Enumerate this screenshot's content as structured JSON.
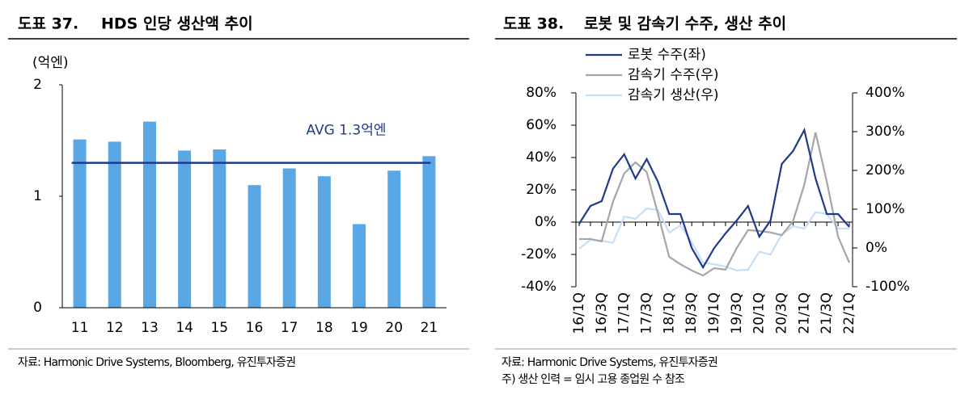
{
  "chart_data": [
    {
      "type": "bar",
      "label": "도표 37.",
      "title": "HDS 인당 생산액 추이",
      "ylabel": "(억엔)",
      "categories": [
        "11",
        "12",
        "13",
        "14",
        "15",
        "16",
        "17",
        "18",
        "19",
        "20",
        "21"
      ],
      "values": [
        1.51,
        1.49,
        1.67,
        1.41,
        1.42,
        1.1,
        1.25,
        1.18,
        0.75,
        1.23,
        1.36
      ],
      "color": "#5aa7e6",
      "ylim": [
        0,
        2
      ],
      "yticks": [
        0,
        1,
        2
      ],
      "avg": 1.3,
      "avg_label": "AVG 1.3억엔",
      "avg_color": "#1f3a8c",
      "source": "자료: Harmonic Drive Systems, Bloomberg, 유진투자증권"
    },
    {
      "type": "line",
      "label": "도표 38.",
      "title": "로봇 및 감속기 수주, 생산 추이",
      "categories": [
        "16/1Q",
        null,
        "16/3Q",
        null,
        "17/1Q",
        null,
        "17/3Q",
        null,
        "18/1Q",
        null,
        "18/3Q",
        null,
        "19/1Q",
        null,
        "19/3Q",
        null,
        "20/1Q",
        null,
        "20/3Q",
        null,
        "21/1Q",
        null,
        "21/3Q",
        null,
        "22/1Q"
      ],
      "series": [
        {
          "name": "로봇 수주(좌)",
          "color": "#1f3a8c",
          "values": [
            -1,
            10,
            13,
            33,
            42,
            27,
            39,
            25,
            5,
            5,
            -16,
            -28,
            -16,
            -7,
            1,
            10,
            -9,
            1,
            36,
            44,
            57,
            27,
            5,
            5,
            -3
          ]
        },
        {
          "name": "감속기 수주(우)",
          "color": "#a6a6a6",
          "axis": "y2",
          "values": [
            23,
            23,
            17,
            119,
            192,
            221,
            196,
            88,
            -23,
            -42,
            -58,
            -71,
            -52,
            -56,
            0,
            46,
            44,
            40,
            33,
            69,
            163,
            298,
            171,
            29,
            -38
          ]
        },
        {
          "name": "감속기 생산(우)",
          "color": "#c5defa",
          "axis": "y2",
          "values": [
            -2,
            21,
            19,
            13,
            81,
            75,
            102,
            98,
            40,
            58,
            15,
            -38,
            -42,
            -48,
            -58,
            -56,
            -10,
            -17,
            35,
            56,
            50,
            92,
            88,
            50,
            50
          ]
        }
      ],
      "ylim": [
        -40,
        80
      ],
      "yticks": [
        {
          "value": -40,
          "label": "-40%"
        },
        {
          "value": -20,
          "label": "-20%"
        },
        {
          "value": 0,
          "label": "0%"
        },
        {
          "value": 20,
          "label": "20%"
        },
        {
          "value": 40,
          "label": "40%"
        },
        {
          "value": 60,
          "label": "60%"
        },
        {
          "value": 80,
          "label": "80%"
        }
      ],
      "y2lim": [
        -100,
        400
      ],
      "y2ticks": [
        {
          "value": -100,
          "label": "-100%"
        },
        {
          "value": 0,
          "label": "0%"
        },
        {
          "value": 100,
          "label": "100%"
        },
        {
          "value": 200,
          "label": "200%"
        },
        {
          "value": 300,
          "label": "300%"
        },
        {
          "value": 400,
          "label": "400%"
        }
      ],
      "legend": "top-left",
      "source": "자료: Harmonic Drive Systems, 유진투자증권",
      "note": "주) 생산 인력 = 임시 고용 종업원 수 참조"
    }
  ]
}
